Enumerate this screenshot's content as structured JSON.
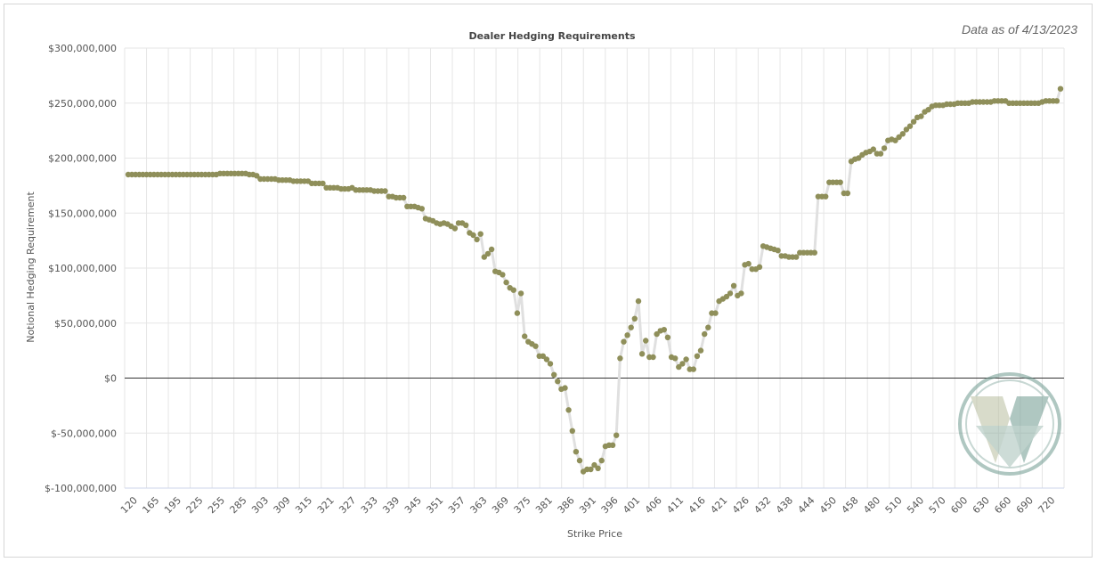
{
  "header": {
    "as_of": "Data as of 4/13/2023"
  },
  "chart_data": {
    "type": "line",
    "title": "Dealer Hedging Requirements",
    "xlabel": "Strike Price",
    "ylabel": "Notional Hedging Requirement",
    "ylim": [
      -100000000,
      300000000
    ],
    "y_ticks": [
      "$300,000,000",
      "$250,000,000",
      "$200,000,000",
      "$150,000,000",
      "$100,000,000",
      "$50,000,000",
      "$0",
      "$-50,000,000",
      "$-100,000,000"
    ],
    "x_tick_labels": [
      "120",
      "165",
      "195",
      "225",
      "255",
      "285",
      "303",
      "309",
      "315",
      "321",
      "327",
      "333",
      "339",
      "345",
      "351",
      "357",
      "363",
      "369",
      "375",
      "381",
      "386",
      "391",
      "396",
      "401",
      "406",
      "411",
      "416",
      "421",
      "426",
      "432",
      "438",
      "444",
      "450",
      "458",
      "480",
      "510",
      "540",
      "570",
      "600",
      "630",
      "660",
      "690",
      "720"
    ],
    "grid": true,
    "legend": "none",
    "colors": {
      "marker": "#8f8f5a",
      "line": "#e0e0e0",
      "zero_line": "#333333",
      "grid": "#e6e6e6"
    },
    "series": [
      {
        "values": [
          185000000,
          185000000,
          185000000,
          185000000,
          185000000,
          185000000,
          185000000,
          185000000,
          185000000,
          185000000,
          185000000,
          185000000,
          185000000,
          185000000,
          185000000,
          185000000,
          185000000,
          185000000,
          185000000,
          185000000,
          185000000,
          185000000,
          185000000,
          185000000,
          185000000,
          186000000,
          186000000,
          186000000,
          186000000,
          186000000,
          186000000,
          186000000,
          186000000,
          185000000,
          185000000,
          184000000,
          181000000,
          181000000,
          181000000,
          181000000,
          181000000,
          180000000,
          180000000,
          180000000,
          180000000,
          179000000,
          179000000,
          179000000,
          179000000,
          179000000,
          177000000,
          177000000,
          177000000,
          177000000,
          173000000,
          173000000,
          173000000,
          173000000,
          172000000,
          172000000,
          172000000,
          173000000,
          171000000,
          171000000,
          171000000,
          171000000,
          171000000,
          170000000,
          170000000,
          170000000,
          170000000,
          165000000,
          165000000,
          164000000,
          164000000,
          164000000,
          156000000,
          156000000,
          156000000,
          155000000,
          154000000,
          145000000,
          144000000,
          143000000,
          141000000,
          140000000,
          141000000,
          140000000,
          138000000,
          136000000,
          141000000,
          141000000,
          139000000,
          132000000,
          130000000,
          126000000,
          131000000,
          110000000,
          113000000,
          117000000,
          97000000,
          96000000,
          94000000,
          87000000,
          82000000,
          80000000,
          59000000,
          77000000,
          38000000,
          33000000,
          31000000,
          29000000,
          20000000,
          20000000,
          17000000,
          13000000,
          3000000,
          -3000000,
          -10000000,
          -9000000,
          -29000000,
          -48000000,
          -67000000,
          -75000000,
          -85000000,
          -83000000,
          -83000000,
          -79000000,
          -82000000,
          -75000000,
          -62000000,
          -61000000,
          -61000000,
          -52000000,
          18000000,
          33000000,
          39000000,
          46000000,
          54000000,
          70000000,
          22000000,
          34000000,
          19000000,
          19000000,
          40000000,
          43000000,
          44000000,
          37000000,
          19000000,
          18000000,
          10000000,
          13000000,
          17000000,
          8000000,
          8000000,
          20000000,
          25000000,
          40000000,
          46000000,
          59000000,
          59000000,
          70000000,
          72000000,
          74000000,
          77000000,
          84000000,
          75000000,
          77000000,
          103000000,
          104000000,
          99000000,
          99000000,
          101000000,
          120000000,
          119000000,
          118000000,
          117000000,
          116000000,
          111000000,
          111000000,
          110000000,
          110000000,
          110000000,
          114000000,
          114000000,
          114000000,
          114000000,
          114000000,
          165000000,
          165000000,
          165000000,
          178000000,
          178000000,
          178000000,
          178000000,
          168000000,
          168000000,
          197000000,
          199000000,
          200000000,
          203000000,
          205000000,
          206000000,
          208000000,
          204000000,
          204000000,
          209000000,
          216000000,
          217000000,
          216000000,
          219000000,
          222000000,
          226000000,
          229000000,
          233000000,
          237000000,
          238000000,
          242000000,
          244000000,
          247000000,
          248000000,
          248000000,
          248000000,
          249000000,
          249000000,
          249000000,
          250000000,
          250000000,
          250000000,
          250000000,
          251000000,
          251000000,
          251000000,
          251000000,
          251000000,
          251000000,
          252000000,
          252000000,
          252000000,
          252000000,
          250000000,
          250000000,
          250000000,
          250000000,
          250000000,
          250000000,
          250000000,
          250000000,
          250000000,
          251000000,
          252000000,
          252000000,
          252000000,
          252000000,
          263000000
        ]
      }
    ]
  }
}
